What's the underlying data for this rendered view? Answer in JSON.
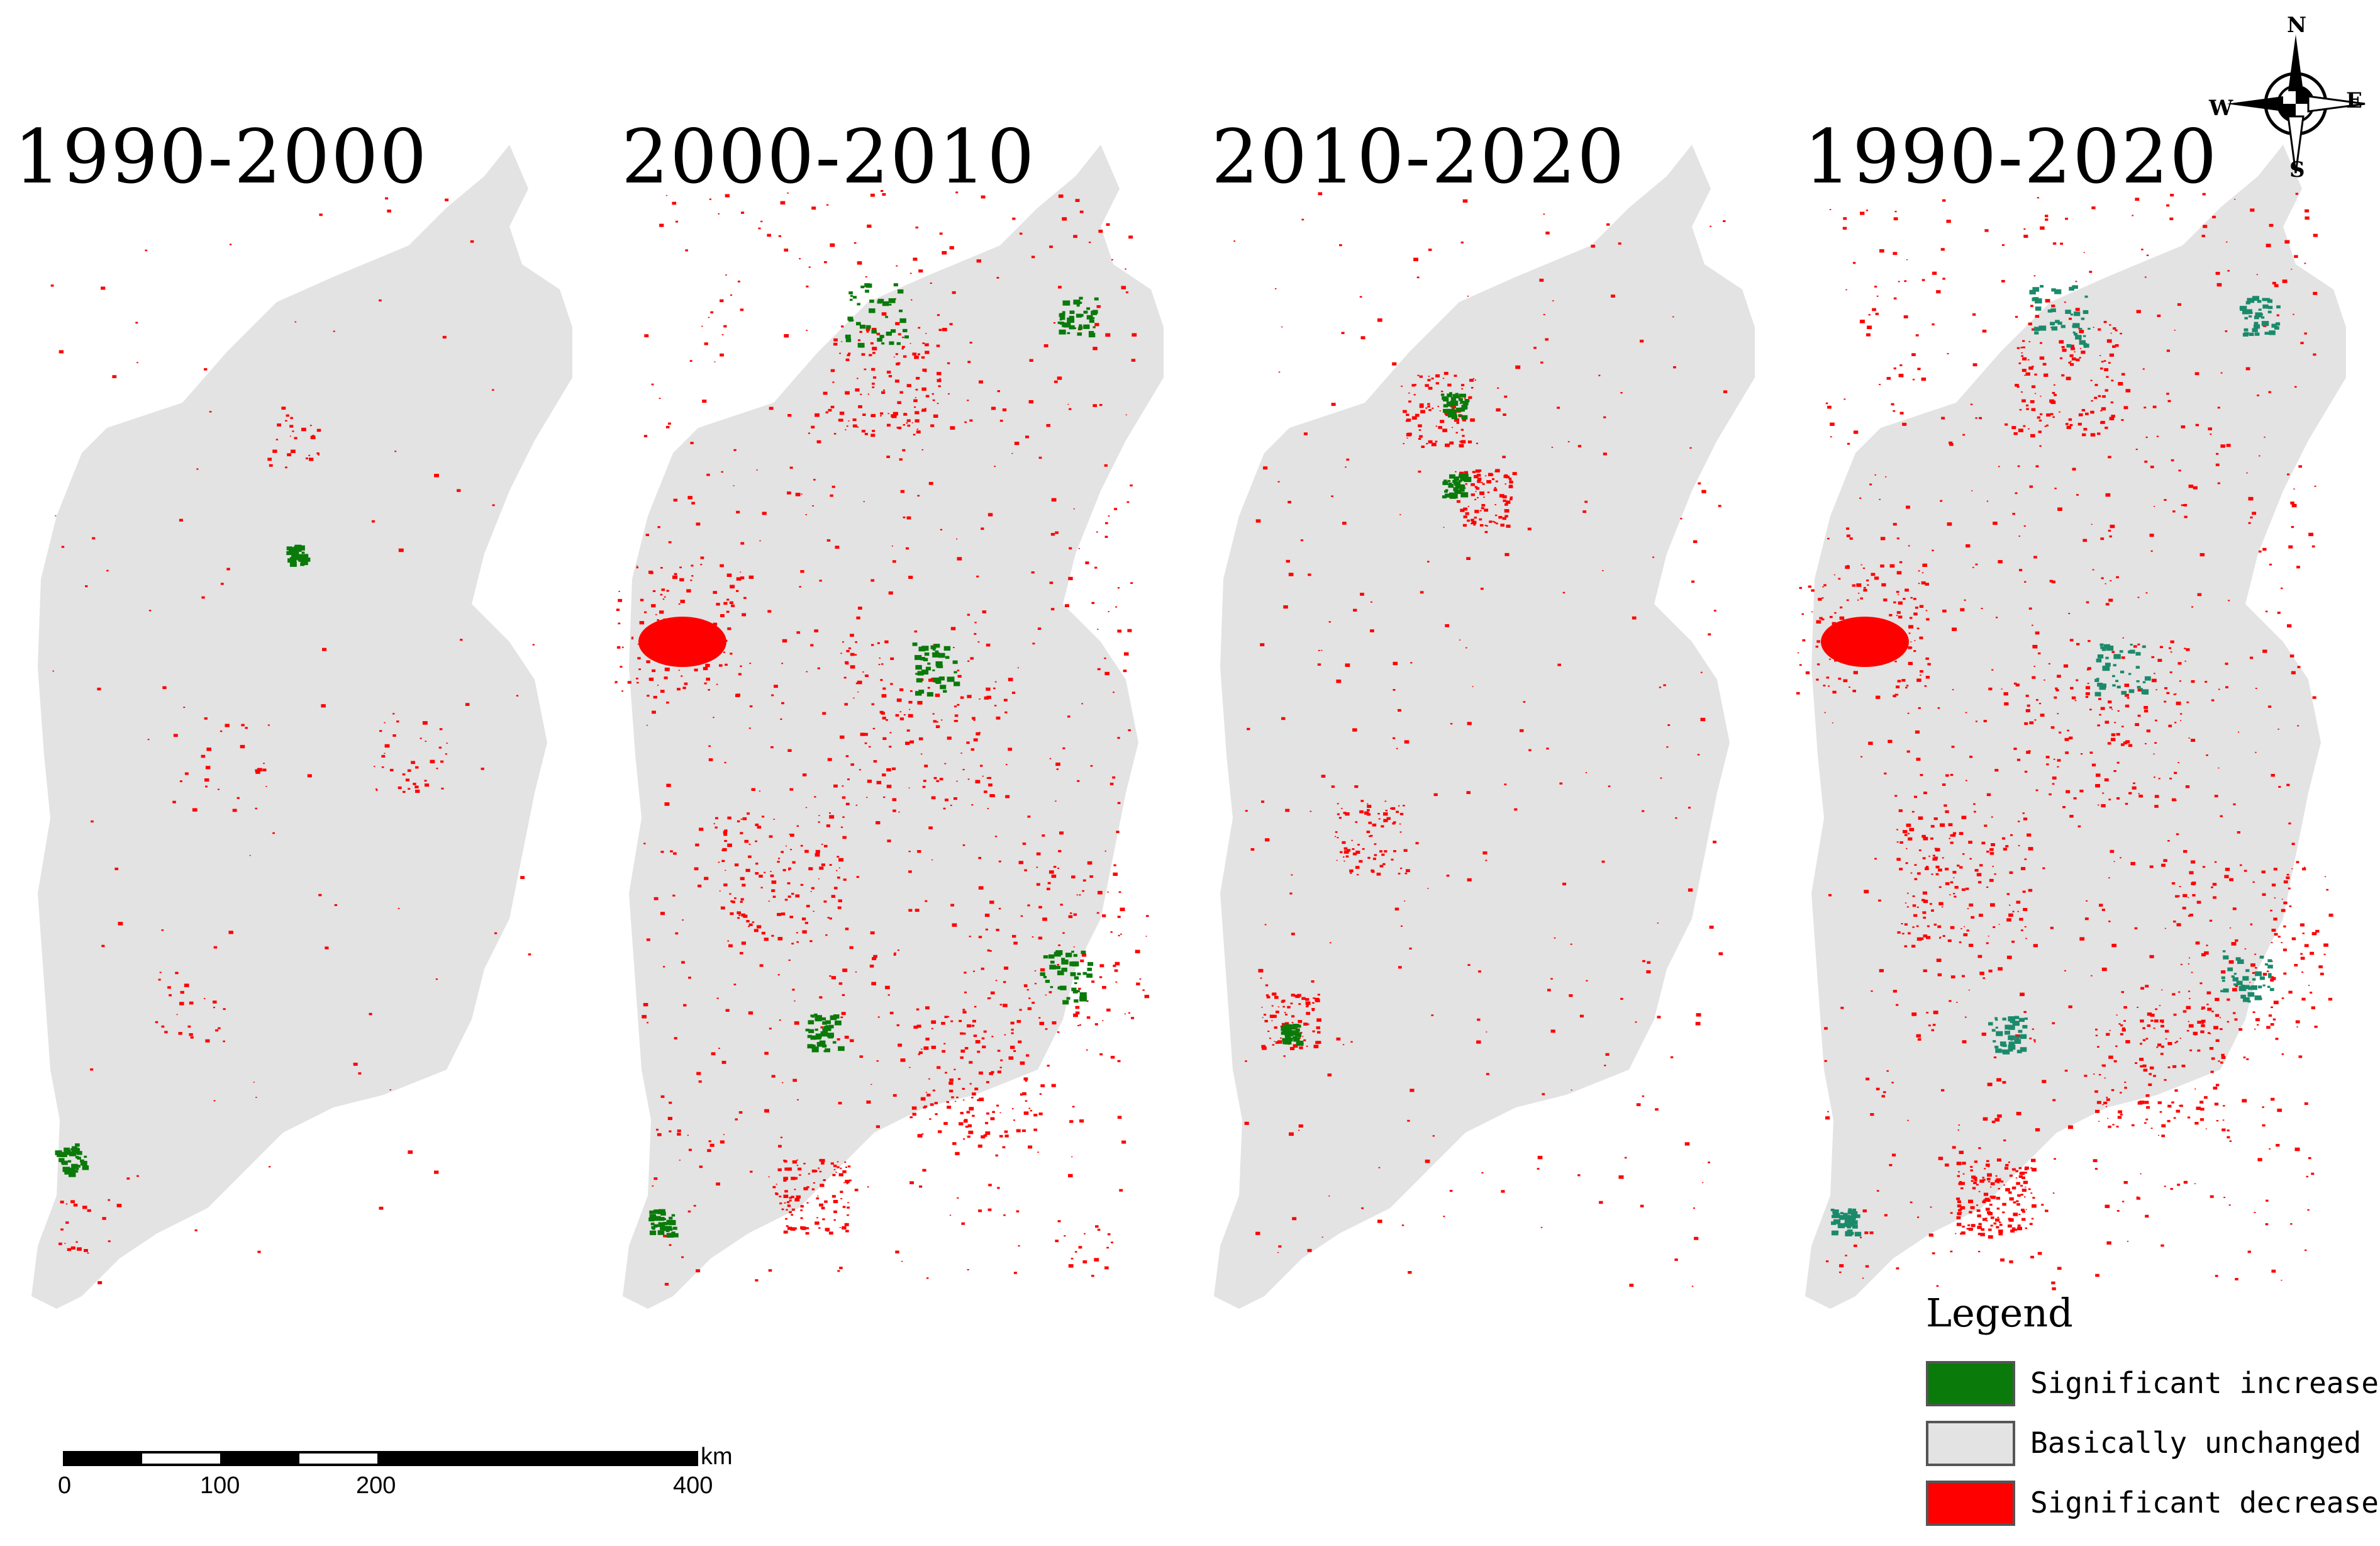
{
  "panels": [
    {
      "title": "1990-2000"
    },
    {
      "title": "2000-2010"
    },
    {
      "title": "2010-2020"
    },
    {
      "title": "1990-2020"
    }
  ],
  "legend": {
    "title": "Legend",
    "items": [
      {
        "label": "Significant increase",
        "color": "#0a7a0a"
      },
      {
        "label": "Basically unchanged",
        "color": "#e3e3e3"
      },
      {
        "label": "Significant decrease",
        "color": "#ff0000"
      }
    ]
  },
  "scale_bar": {
    "unit": "km",
    "ticks": [
      "0",
      "100",
      "200",
      "400"
    ]
  },
  "compass": {
    "north": "N",
    "south": "S",
    "east": "E",
    "west": "W"
  },
  "colors": {
    "unchanged": "#e3e3e3",
    "increase": "#0a7a0a",
    "increase_combined": "#1b8a6b",
    "decrease": "#ff0000"
  }
}
